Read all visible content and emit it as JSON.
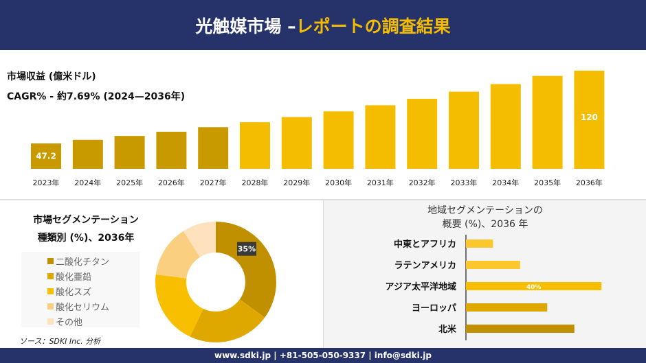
{
  "header": {
    "title_main": "光触媒市場 –",
    "title_accent": "レポートの調査結果"
  },
  "top": {
    "subtitle1": "市場収益 (億米ドル)",
    "subtitle2": "CAGR% - 約7.69% (2024—2036年)"
  },
  "left": {
    "title1": "市場セグメンテーション",
    "title2": "種類別 (%)、2036年",
    "source": "ソース：SDKI Inc. 分析"
  },
  "right": {
    "title1": "地域セグメンテーションの",
    "title2": "概要 (%)、2036 年"
  },
  "footer": {
    "text": "www.sdki.jp | +81-505-050-9337 | info@sdki.jp"
  },
  "chart_data": [
    {
      "type": "bar",
      "categories": [
        "2023年",
        "2024年",
        "2025年",
        "2026年",
        "2027年",
        "2028年",
        "2029年",
        "2030年",
        "2031年",
        "2032年",
        "2033年",
        "2034年",
        "2035年",
        "2036年"
      ],
      "values": [
        47.2,
        50.8,
        54.7,
        58.9,
        63.5,
        68.4,
        73.6,
        79.3,
        85.4,
        91.9,
        99.0,
        106.6,
        114.8,
        120
      ],
      "data_labels": {
        "0": "47.2",
        "13": "120"
      },
      "colors": [
        "#c99a00",
        "#f5bd00"
      ]
    },
    {
      "type": "pie",
      "categories": [
        "二酸化チタン",
        "酸化亜鉛",
        "酸化スズ",
        "酸化セリウム",
        "その他"
      ],
      "values": [
        35,
        22,
        20,
        14,
        9
      ],
      "data_labels": {
        "0": "35%"
      },
      "colors": [
        "#c09000",
        "#dfa800",
        "#f8bf00",
        "#fbcf80",
        "#fde2bd"
      ]
    },
    {
      "type": "bar",
      "orientation": "horizontal",
      "categories": [
        "中東とアフリカ",
        "ラテンアメリカ",
        "アジア太平洋地域",
        "ヨーロッパ",
        "北米"
      ],
      "values": [
        8,
        16,
        40,
        24,
        32
      ],
      "data_labels": {
        "2": "40%"
      },
      "colors": [
        "#fcc72c",
        "#fcc72c",
        "#f8bf00",
        "#dfa800",
        "#c09000"
      ]
    }
  ]
}
